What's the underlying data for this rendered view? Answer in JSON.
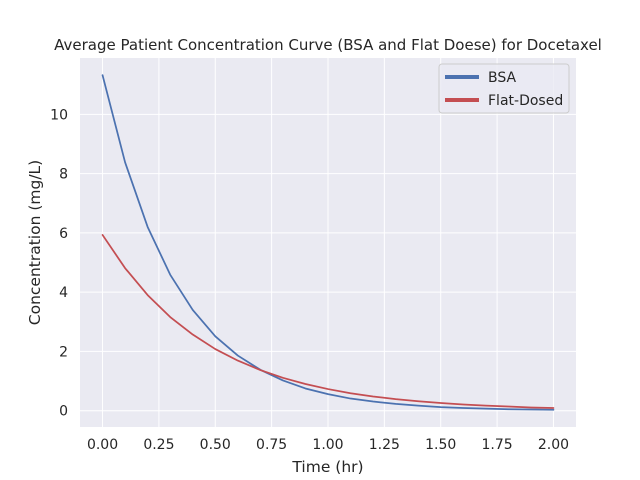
{
  "chart_data": {
    "type": "line",
    "title": "Average Patient Concentration Curve (BSA and Flat Doese) for Docetaxel",
    "xlabel": "Time (hr)",
    "ylabel": "Concentration (mg/L)",
    "xlim": [
      -0.1,
      2.1
    ],
    "ylim": [
      -0.55,
      11.9
    ],
    "xticks": [
      0.0,
      0.25,
      0.5,
      0.75,
      1.0,
      1.25,
      1.5,
      1.75,
      2.0
    ],
    "xtick_labels": [
      "0.00",
      "0.25",
      "0.50",
      "0.75",
      "1.00",
      "1.25",
      "1.50",
      "1.75",
      "2.00"
    ],
    "yticks": [
      0,
      2,
      4,
      6,
      8,
      10
    ],
    "ytick_labels": [
      "0",
      "2",
      "4",
      "6",
      "8",
      "10"
    ],
    "grid": true,
    "legend_position": "top-right",
    "x": [
      0.0,
      0.1,
      0.2,
      0.3,
      0.4,
      0.5,
      0.6,
      0.7,
      0.8,
      0.9,
      1.0,
      1.1,
      1.2,
      1.3,
      1.4,
      1.5,
      1.6,
      1.7,
      1.8,
      1.9,
      2.0
    ],
    "series": [
      {
        "name": "BSA",
        "color": "#4c72b0",
        "values": [
          11.32,
          8.38,
          6.2,
          4.59,
          3.4,
          2.51,
          1.86,
          1.38,
          1.02,
          0.75,
          0.56,
          0.41,
          0.31,
          0.23,
          0.17,
          0.12,
          0.09,
          0.07,
          0.05,
          0.04,
          0.03
        ]
      },
      {
        "name": "Flat-Dosed",
        "color": "#c44e52",
        "values": [
          5.93,
          4.81,
          3.9,
          3.16,
          2.57,
          2.08,
          1.69,
          1.37,
          1.11,
          0.9,
          0.73,
          0.59,
          0.48,
          0.39,
          0.32,
          0.26,
          0.21,
          0.17,
          0.14,
          0.11,
          0.09
        ]
      }
    ]
  }
}
